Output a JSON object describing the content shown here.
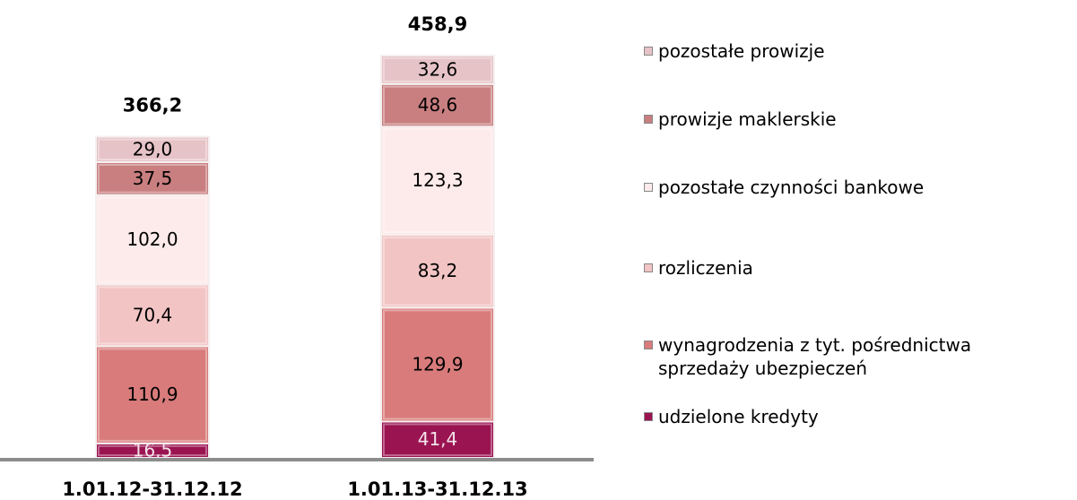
{
  "chart_data": {
    "type": "stacked_bar",
    "categories": [
      "1.01.12-31.12.12",
      "1.01.13-31.12.13"
    ],
    "totals": [
      366.2,
      458.9
    ],
    "total_labels": [
      "366,2",
      "458,9"
    ],
    "series": [
      {
        "name": "udzielone kredyty",
        "color": "#9b1452",
        "values": [
          16.5,
          41.4
        ],
        "value_labels": [
          "16,5",
          "41,4"
        ]
      },
      {
        "name": "wynagrodzenia z tyt. pośrednictwa sprzedaży ubezpieczeń",
        "color": "#d97b7b",
        "values": [
          110.9,
          129.9
        ],
        "value_labels": [
          "110,9",
          "129,9"
        ]
      },
      {
        "name": "rozliczenia",
        "color": "#f2c4c4",
        "values": [
          70.4,
          83.2
        ],
        "value_labels": [
          "70,4",
          "83,2"
        ]
      },
      {
        "name": "pozostałe czynności bankowe",
        "color": "#fdeaea",
        "values": [
          102.0,
          123.3
        ],
        "value_labels": [
          "102,0",
          "123,3"
        ]
      },
      {
        "name": "prowizje maklerskie",
        "color": "#c97f80",
        "values": [
          37.5,
          48.6
        ],
        "value_labels": [
          "37,5",
          "48,6"
        ]
      },
      {
        "name": "pozostałe prowizje",
        "color": "#e6c3c7",
        "values": [
          29.0,
          32.6
        ],
        "value_labels": [
          "29,0",
          "32,6"
        ]
      }
    ]
  }
}
